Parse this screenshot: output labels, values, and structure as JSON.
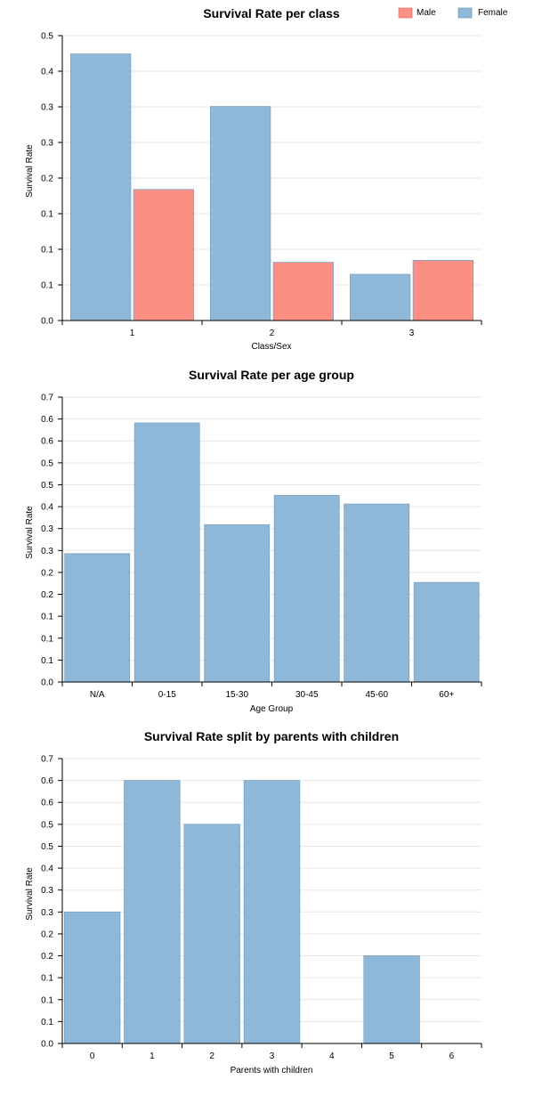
{
  "chart_data": [
    {
      "type": "bar",
      "title": "Survival Rate per class",
      "xlabel": "Class/Sex",
      "ylabel": "Survival Rate",
      "categories": [
        "1",
        "2",
        "3"
      ],
      "ytick_labels": [
        "0.0",
        "0.1",
        "0.1",
        "0.1",
        "0.2",
        "0.3",
        "0.3",
        "0.4",
        "0.5"
      ],
      "ylim": [
        0,
        0.45
      ],
      "legend": "top-right",
      "series": [
        {
          "name": "Female",
          "color": "#8fb8d8",
          "values": [
            0.421,
            0.338,
            0.073
          ]
        },
        {
          "name": "Male",
          "color": "#fb8f84",
          "values": [
            0.207,
            0.092,
            0.095
          ]
        }
      ]
    },
    {
      "type": "bar",
      "title": "Survival Rate per age group",
      "xlabel": "Age Group",
      "ylabel": "Survival Rate",
      "categories": [
        "N/A",
        "0-15",
        "15-30",
        "30-45",
        "45-60",
        "60+"
      ],
      "ytick_labels": [
        "0.0",
        "0.1",
        "0.1",
        "0.1",
        "0.2",
        "0.2",
        "0.3",
        "0.3",
        "0.4",
        "0.5",
        "0.5",
        "0.6",
        "0.6",
        "0.7"
      ],
      "ylim": [
        0,
        0.65
      ],
      "series": [
        {
          "name": "",
          "color": "#8fb8d8",
          "values": [
            0.293,
            0.591,
            0.359,
            0.426,
            0.406,
            0.227
          ]
        }
      ]
    },
    {
      "type": "bar",
      "title": "Survival Rate split by parents with children",
      "xlabel": "Parents with children",
      "ylabel": "Survival Rate",
      "categories": [
        "0",
        "1",
        "2",
        "3",
        "4",
        "5",
        "6"
      ],
      "ytick_labels": [
        "0.0",
        "0.1",
        "0.1",
        "0.1",
        "0.2",
        "0.2",
        "0.3",
        "0.3",
        "0.4",
        "0.5",
        "0.5",
        "0.6",
        "0.6",
        "0.7"
      ],
      "ylim": [
        0,
        0.65
      ],
      "series": [
        {
          "name": "",
          "color": "#8fb8d8",
          "values": [
            0.3,
            0.6,
            0.5,
            0.6,
            0,
            0.2,
            0
          ]
        }
      ]
    }
  ]
}
